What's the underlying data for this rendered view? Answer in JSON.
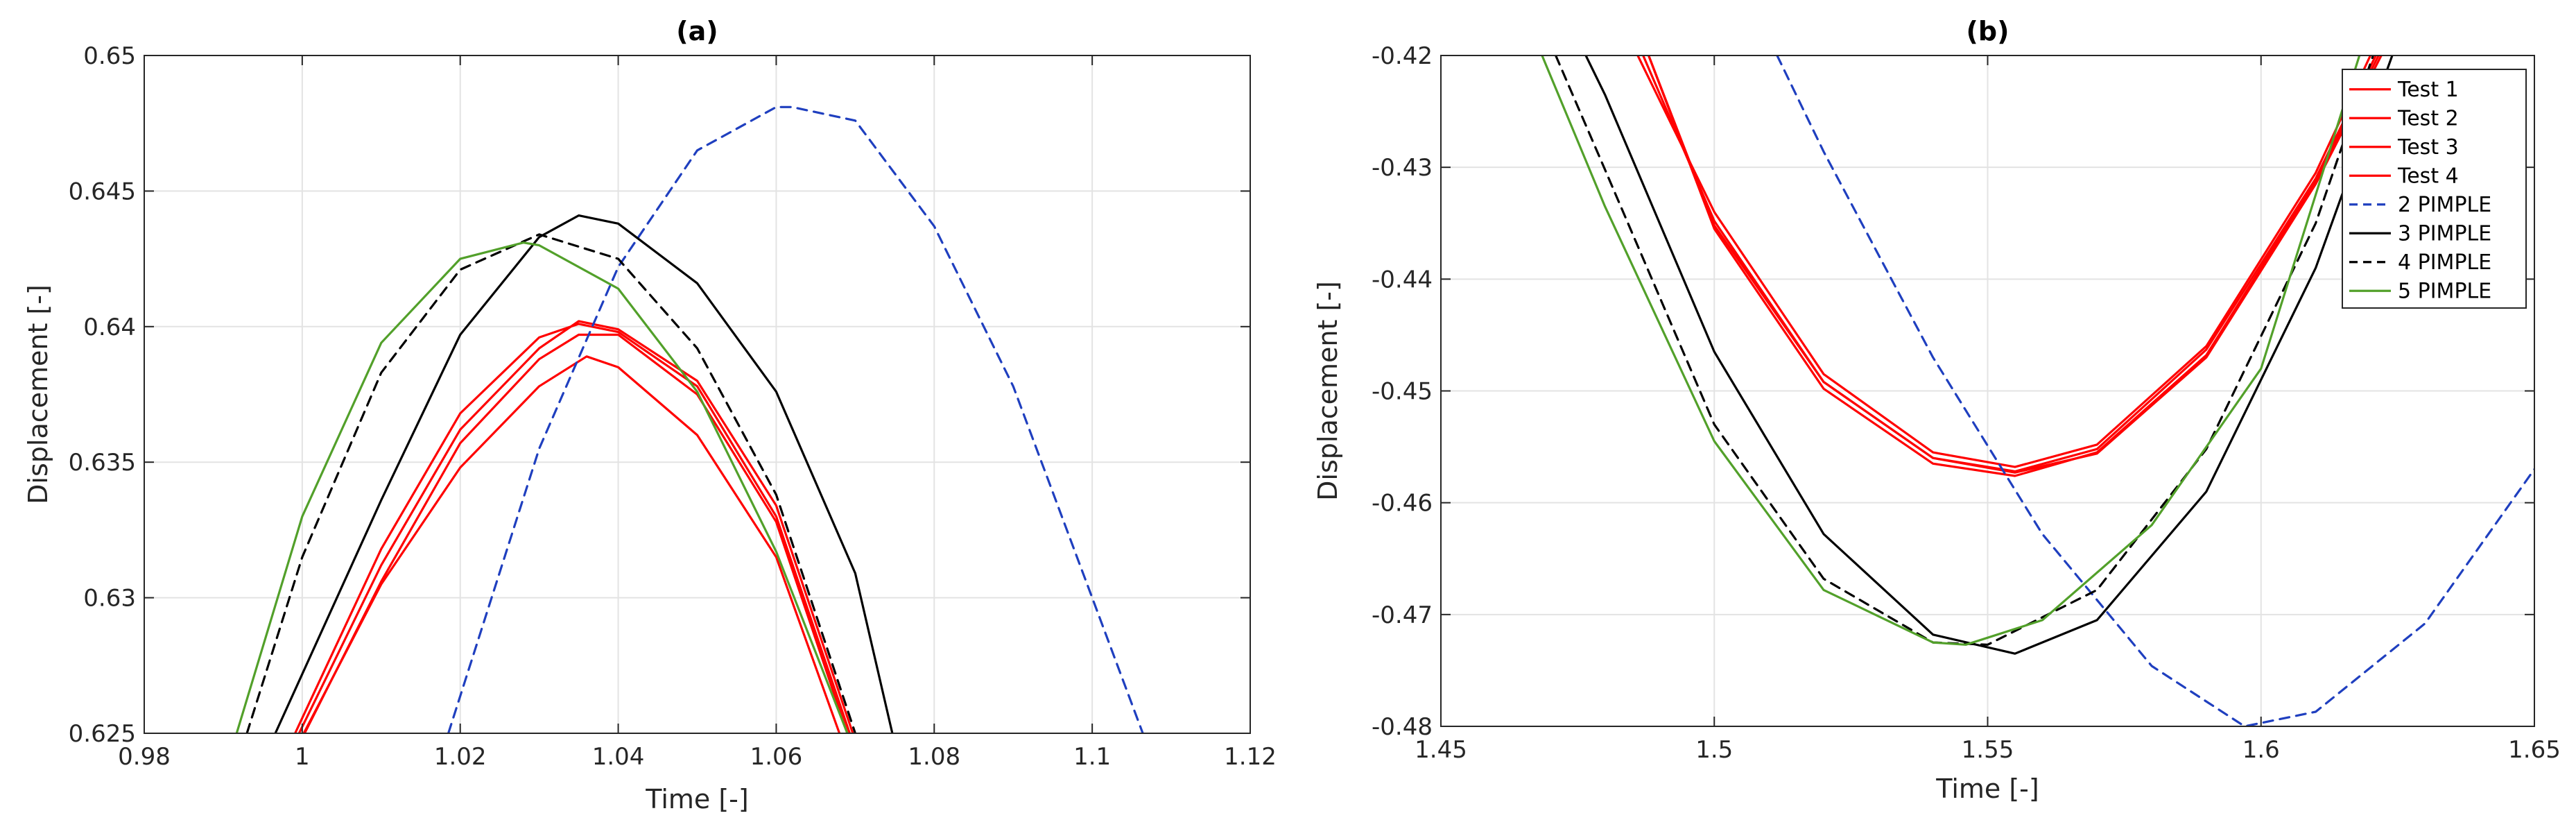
{
  "chart_data": [
    {
      "type": "line",
      "title": "(a)",
      "xlabel": "Time [-]",
      "ylabel": "Displacement [-]",
      "xlim": [
        0.98,
        1.12
      ],
      "ylim": [
        0.625,
        0.65
      ],
      "xticks": [
        0.98,
        1.0,
        1.02,
        1.04,
        1.06,
        1.08,
        1.1,
        1.12
      ],
      "xtick_labels": [
        "0.98",
        "1",
        "1.02",
        "1.04",
        "1.06",
        "1.08",
        "1.1",
        "1.12"
      ],
      "yticks": [
        0.625,
        0.63,
        0.635,
        0.64,
        0.645,
        0.65
      ],
      "ytick_labels": [
        "0.625",
        "0.63",
        "0.635",
        "0.64",
        "0.645",
        "0.65"
      ],
      "grid": true,
      "series": [
        {
          "name": "Test 1",
          "color": "#ff0000",
          "dash": "solid",
          "x": [
            0.9996,
            1.01,
            1.02,
            1.03,
            1.035,
            1.04,
            1.05,
            1.06,
            1.0697
          ],
          "y": [
            0.625,
            0.6312,
            0.6362,
            0.6392,
            0.6402,
            0.6399,
            0.638,
            0.6334,
            0.625
          ]
        },
        {
          "name": "Test 2",
          "color": "#ff0000",
          "dash": "solid",
          "x": [
            0.9991,
            1.01,
            1.02,
            1.03,
            1.035,
            1.04,
            1.05,
            1.06,
            1.0693
          ],
          "y": [
            0.625,
            0.6318,
            0.6368,
            0.6396,
            0.6401,
            0.6398,
            0.6378,
            0.633,
            0.625
          ]
        },
        {
          "name": "Test 3",
          "color": "#ff0000",
          "dash": "solid",
          "x": [
            1.0003,
            1.01,
            1.02,
            1.03,
            1.035,
            1.04,
            1.05,
            1.06,
            1.069
          ],
          "y": [
            0.625,
            0.6306,
            0.6357,
            0.6388,
            0.6397,
            0.6397,
            0.6375,
            0.6328,
            0.625
          ]
        },
        {
          "name": "Test 4",
          "color": "#ff0000",
          "dash": "solid",
          "x": [
            1.0002,
            1.01,
            1.02,
            1.03,
            1.036,
            1.04,
            1.05,
            1.06,
            1.068
          ],
          "y": [
            0.625,
            0.6305,
            0.6348,
            0.6378,
            0.6389,
            0.6385,
            0.636,
            0.6315,
            0.625
          ]
        },
        {
          "name": "2 PIMPLE",
          "color": "#1f3fbf",
          "dash": "dashed",
          "x": [
            1.0185,
            1.03,
            1.04,
            1.05,
            1.06,
            1.062,
            1.07,
            1.08,
            1.09,
            1.1,
            1.1064
          ],
          "y": [
            0.625,
            0.6355,
            0.6422,
            0.6465,
            0.6481,
            0.6481,
            0.6476,
            0.6437,
            0.6378,
            0.63,
            0.625
          ]
        },
        {
          "name": "3 PIMPLE",
          "color": "#000000",
          "dash": "solid",
          "x": [
            0.9966,
            1.01,
            1.02,
            1.03,
            1.035,
            1.04,
            1.05,
            1.06,
            1.07,
            1.0747
          ],
          "y": [
            0.625,
            0.6336,
            0.6397,
            0.6433,
            0.6441,
            0.6438,
            0.6416,
            0.6376,
            0.6309,
            0.625
          ]
        },
        {
          "name": "4 PIMPLE",
          "color": "#000000",
          "dash": "dashed",
          "x": [
            0.993,
            1.0,
            1.01,
            1.02,
            1.03,
            1.04,
            1.05,
            1.06,
            1.07
          ],
          "y": [
            0.625,
            0.6315,
            0.6383,
            0.6421,
            0.6434,
            0.6425,
            0.6392,
            0.6338,
            0.625
          ]
        },
        {
          "name": "5 PIMPLE",
          "color": "#52a02a",
          "dash": "solid",
          "x": [
            0.9917,
            1.0,
            1.01,
            1.02,
            1.028,
            1.03,
            1.04,
            1.05,
            1.06,
            1.069
          ],
          "y": [
            0.625,
            0.633,
            0.6394,
            0.6425,
            0.6431,
            0.643,
            0.6414,
            0.6376,
            0.6317,
            0.625
          ]
        }
      ]
    },
    {
      "type": "line",
      "title": "(b)",
      "xlabel": "Time [-]",
      "ylabel": "Displacement [-]",
      "xlim": [
        1.45,
        1.65
      ],
      "ylim": [
        -0.48,
        -0.42
      ],
      "xticks": [
        1.45,
        1.5,
        1.55,
        1.6,
        1.65
      ],
      "xtick_labels": [
        "1.45",
        "1.5",
        "1.55",
        "1.6",
        "1.65"
      ],
      "yticks": [
        -0.48,
        -0.47,
        -0.46,
        -0.45,
        -0.44,
        -0.43,
        -0.42
      ],
      "ytick_labels": [
        "-0.48",
        "-0.47",
        "-0.46",
        "-0.45",
        "-0.44",
        "-0.43",
        "-0.42"
      ],
      "grid": true,
      "legend_position": "top-right",
      "series": [
        {
          "name": "Test 1",
          "color": "#ff0000",
          "dash": "solid",
          "x": [
            1.486,
            1.5,
            1.52,
            1.54,
            1.555,
            1.57,
            1.59,
            1.61,
            1.62
          ],
          "y": [
            -0.42,
            -0.434,
            -0.4485,
            -0.4555,
            -0.4568,
            -0.4548,
            -0.446,
            -0.4305,
            -0.42
          ]
        },
        {
          "name": "Test 2",
          "color": "#ff0000",
          "dash": "solid",
          "x": [
            1.487,
            1.5,
            1.52,
            1.54,
            1.555,
            1.57,
            1.59,
            1.61,
            1.621
          ],
          "y": [
            -0.42,
            -0.4348,
            -0.4492,
            -0.456,
            -0.4572,
            -0.4552,
            -0.4463,
            -0.431,
            -0.42
          ]
        },
        {
          "name": "Test 3",
          "color": "#ff0000",
          "dash": "solid",
          "x": [
            1.488,
            1.5,
            1.52,
            1.54,
            1.555,
            1.57,
            1.59,
            1.61,
            1.6215
          ],
          "y": [
            -0.42,
            -0.4355,
            -0.4498,
            -0.4565,
            -0.4576,
            -0.4555,
            -0.4468,
            -0.4312,
            -0.42
          ]
        },
        {
          "name": "Test 4",
          "color": "#ff0000",
          "dash": "solid",
          "x": [
            1.488,
            1.5,
            1.52,
            1.54,
            1.555,
            1.57,
            1.59,
            1.61,
            1.622
          ],
          "y": [
            -0.42,
            -0.4352,
            -0.4492,
            -0.456,
            -0.4573,
            -0.4556,
            -0.447,
            -0.4315,
            -0.42
          ]
        },
        {
          "name": "2 PIMPLE",
          "color": "#1f3fbf",
          "dash": "dashed",
          "x": [
            1.5115,
            1.52,
            1.54,
            1.56,
            1.58,
            1.597,
            1.61,
            1.63,
            1.65
          ],
          "y": [
            -0.42,
            -0.4286,
            -0.447,
            -0.4628,
            -0.4746,
            -0.48,
            -0.4787,
            -0.4708,
            -0.457
          ]
        },
        {
          "name": "3 PIMPLE",
          "color": "#000000",
          "dash": "solid",
          "x": [
            1.4765,
            1.48,
            1.5,
            1.52,
            1.54,
            1.555,
            1.57,
            1.59,
            1.61,
            1.624
          ],
          "y": [
            -0.42,
            -0.4235,
            -0.4465,
            -0.4628,
            -0.4718,
            -0.4735,
            -0.4705,
            -0.459,
            -0.439,
            -0.42
          ]
        },
        {
          "name": "4 PIMPLE",
          "color": "#000000",
          "dash": "dashed",
          "x": [
            1.471,
            1.48,
            1.5,
            1.52,
            1.54,
            1.55,
            1.57,
            1.59,
            1.61,
            1.6205
          ],
          "y": [
            -0.42,
            -0.4302,
            -0.453,
            -0.4668,
            -0.4725,
            -0.4727,
            -0.4678,
            -0.4552,
            -0.435,
            -0.42
          ]
        },
        {
          "name": "5 PIMPLE",
          "color": "#52a02a",
          "dash": "solid",
          "x": [
            1.4685,
            1.48,
            1.5,
            1.52,
            1.54,
            1.546,
            1.56,
            1.58,
            1.6,
            1.618
          ],
          "y": [
            -0.42,
            -0.4335,
            -0.4545,
            -0.4678,
            -0.4725,
            -0.4727,
            -0.4705,
            -0.462,
            -0.448,
            -0.42
          ]
        }
      ]
    }
  ]
}
